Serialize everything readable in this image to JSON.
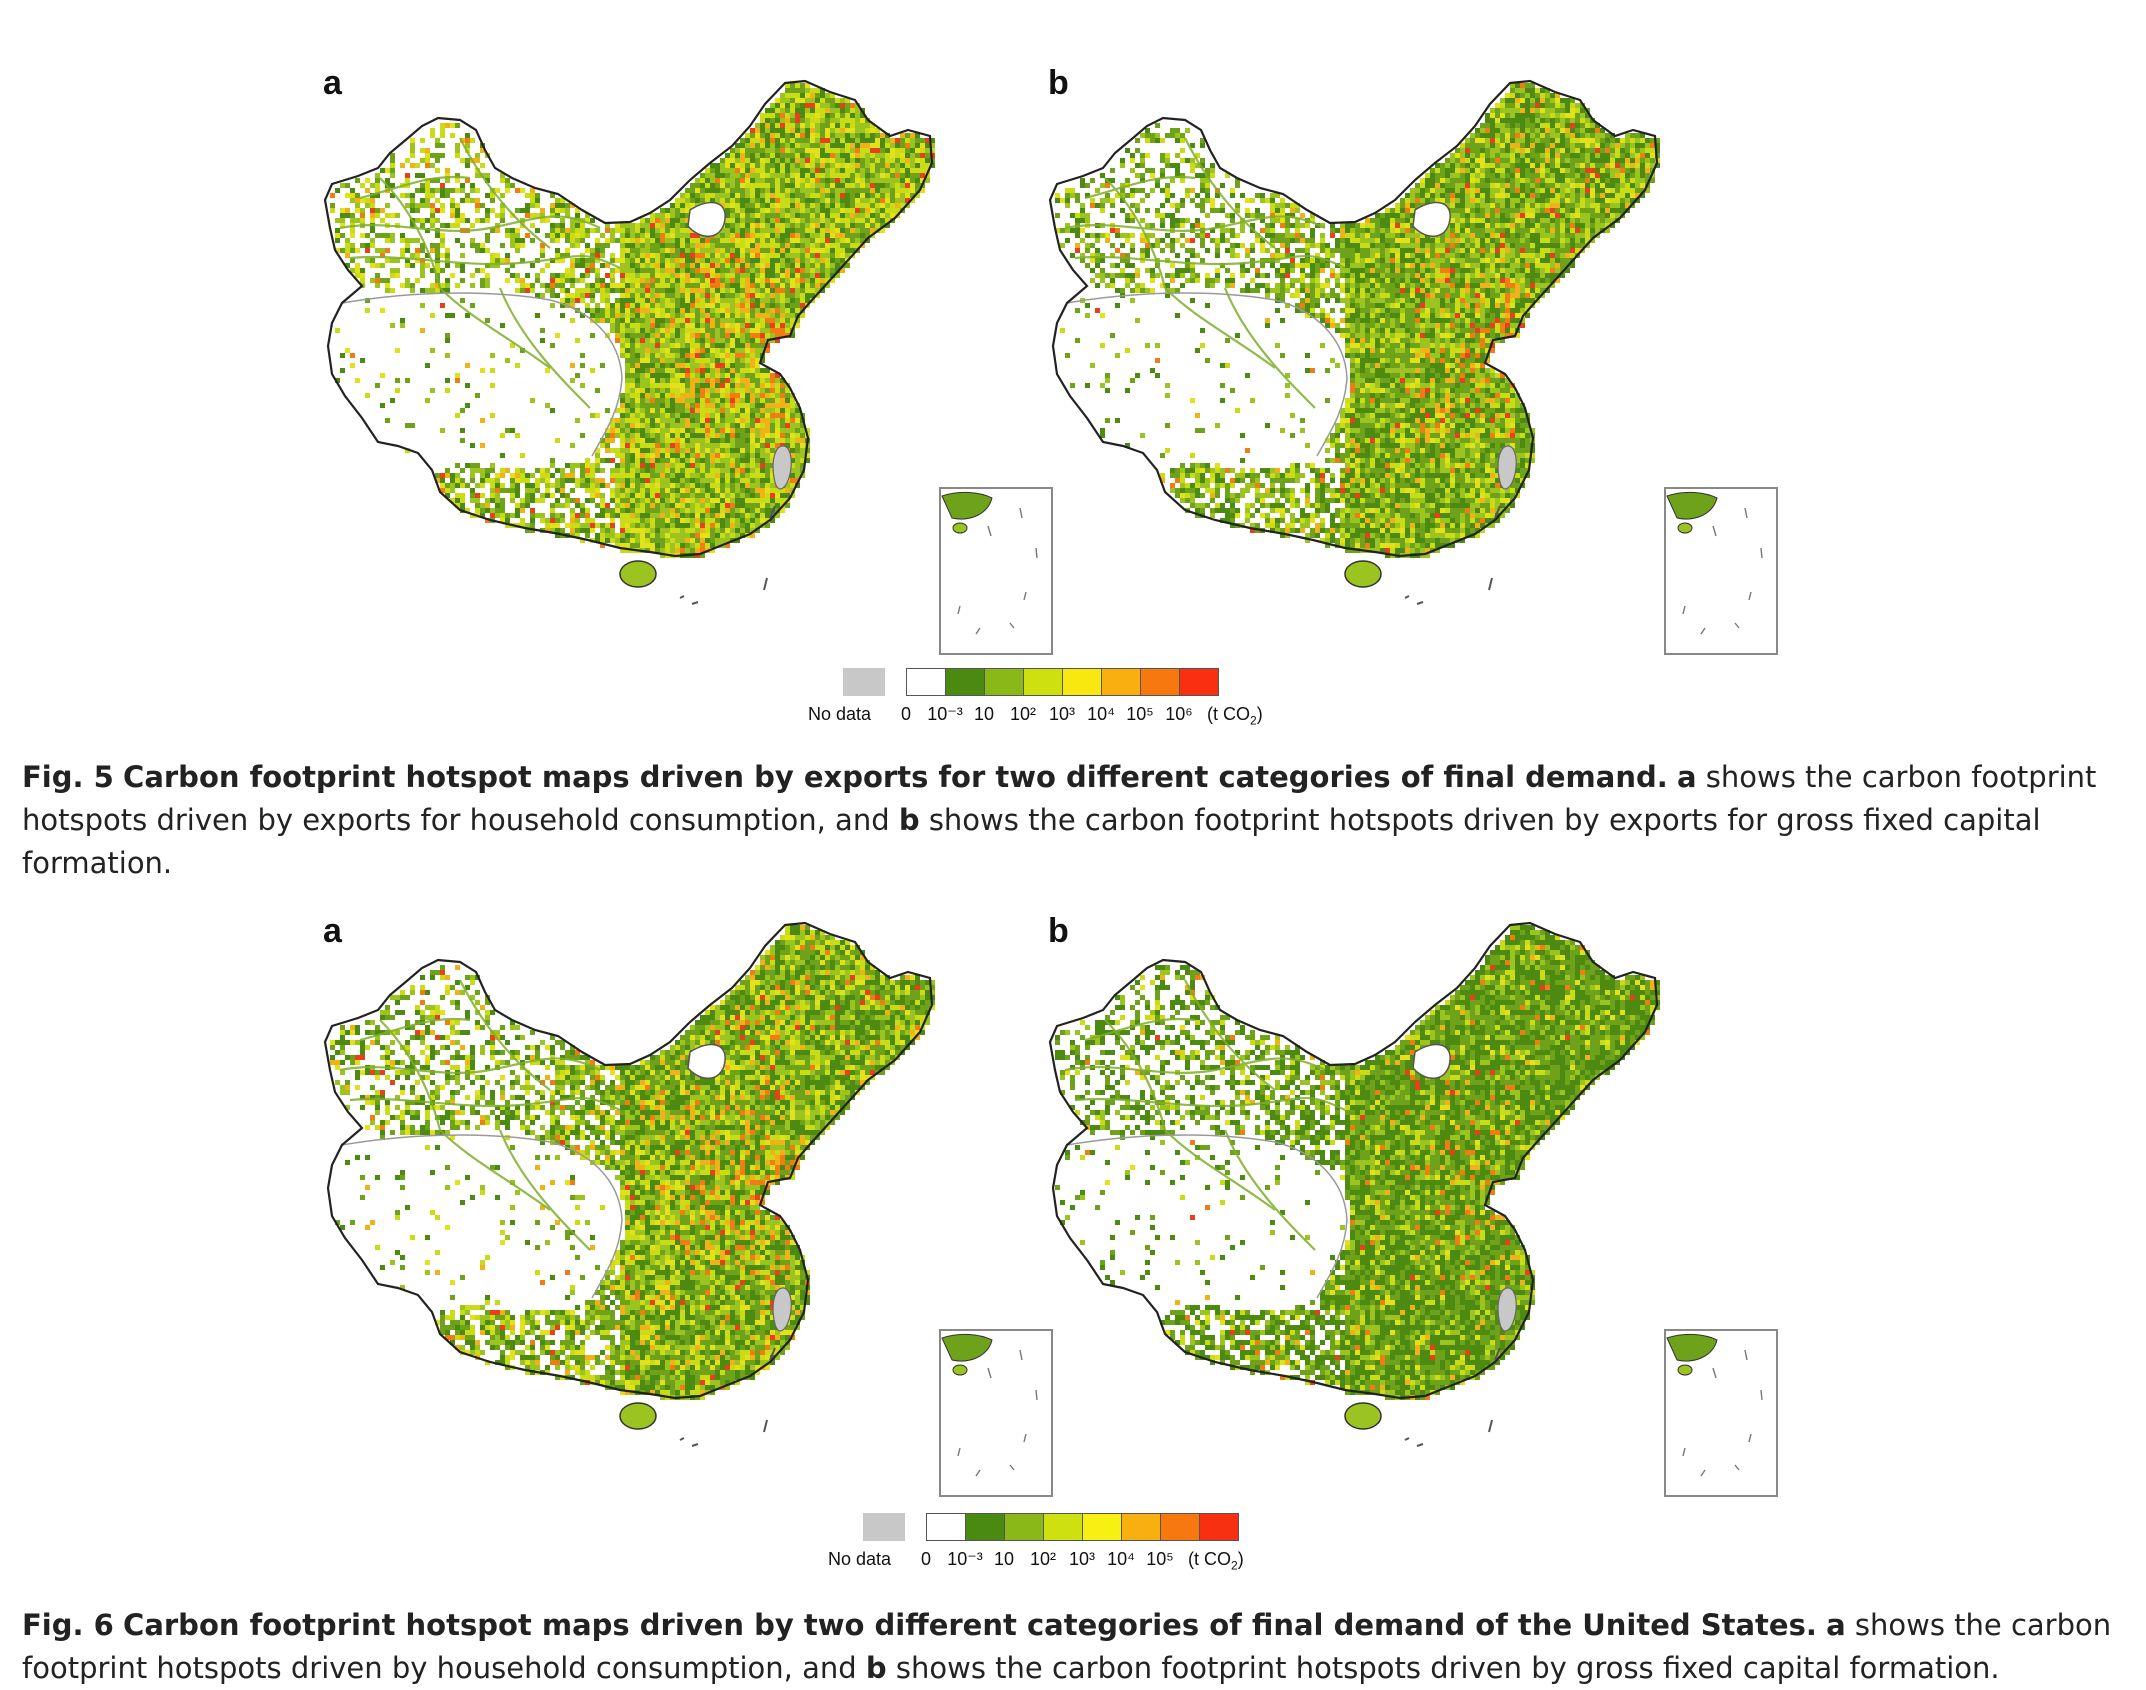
{
  "figures": [
    {
      "id": "fig5",
      "panels": [
        {
          "label": "a",
          "palette": [
            "#4c8a12",
            "#6ea21a",
            "#9cc420",
            "#c9dc16",
            "#e3e21a",
            "#f0b218",
            "#f07c14",
            "#e8401a"
          ],
          "weights": [
            0.16,
            0.2,
            0.22,
            0.22,
            0.1,
            0.05,
            0.03,
            0.02
          ]
        },
        {
          "label": "b",
          "palette": [
            "#4c8a12",
            "#6ea21a",
            "#9cc420",
            "#c9dc16",
            "#e3e21a",
            "#f0b218",
            "#f07c14",
            "#e8401a"
          ],
          "weights": [
            0.26,
            0.26,
            0.22,
            0.14,
            0.06,
            0.03,
            0.02,
            0.01
          ]
        }
      ],
      "legend": {
        "no_data": "No data",
        "colors": [
          "#ffffff",
          "#4a8a10",
          "#8ab818",
          "#cfe010",
          "#f8e810",
          "#f8b010",
          "#f87810",
          "#f83010"
        ],
        "ticks": [
          "0",
          "10⁻³",
          "10",
          "10²",
          "10³",
          "10⁴",
          "10⁵",
          "10⁶"
        ],
        "unit_prefix": "(t CO",
        "unit_sub": "2",
        "unit_suffix": ")"
      },
      "caption": {
        "label": "Fig. 5",
        "title": "Carbon footprint hotspot maps driven by exports for two different categories of final demand.",
        "part_a_letter": "a",
        "part_a_text": "shows the carbon footprint hotspots driven by exports for household consumption, and",
        "part_b_letter": "b",
        "part_b_text": "shows the carbon footprint hotspots driven by exports for gross fixed capital formation."
      }
    },
    {
      "id": "fig6",
      "panels": [
        {
          "label": "a",
          "palette": [
            "#4c8a12",
            "#6ea21a",
            "#9cc420",
            "#c9dc16",
            "#e3e21a",
            "#f0b218",
            "#f07c14",
            "#e8401a"
          ],
          "weights": [
            0.28,
            0.24,
            0.18,
            0.14,
            0.08,
            0.04,
            0.025,
            0.015
          ]
        },
        {
          "label": "b",
          "palette": [
            "#4c8a12",
            "#6ea21a",
            "#9cc420",
            "#c9dc16",
            "#e3e21a",
            "#f0b218",
            "#f07c14",
            "#e8401a"
          ],
          "weights": [
            0.42,
            0.3,
            0.14,
            0.07,
            0.03,
            0.02,
            0.015,
            0.005
          ]
        }
      ],
      "legend": {
        "no_data": "No data",
        "colors": [
          "#ffffff",
          "#4a8a10",
          "#8ab818",
          "#cfe010",
          "#f8f010",
          "#f8b010",
          "#f87810",
          "#f83010"
        ],
        "ticks": [
          "0",
          "10⁻³",
          "10",
          "10²",
          "10³",
          "10⁴",
          "10⁵"
        ],
        "unit_prefix": "(t CO",
        "unit_sub": "2",
        "unit_suffix": ")"
      },
      "caption": {
        "label": "Fig. 6",
        "title": "Carbon footprint hotspot maps driven by two different categories of final demand of the United States.",
        "part_a_letter": "a",
        "part_a_text": "shows the carbon footprint hotspots driven by household consumption, and",
        "part_b_letter": "b",
        "part_b_text": "shows the carbon footprint hotspots driven by gross fixed capital formation."
      }
    }
  ]
}
